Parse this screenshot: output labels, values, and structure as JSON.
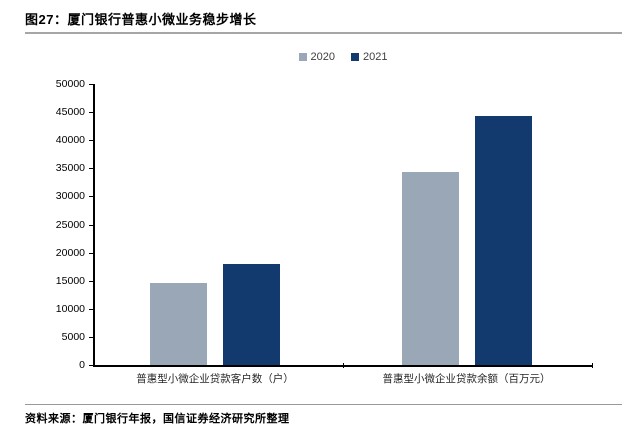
{
  "figure": {
    "title": "图27：厦门银行普惠小微业务稳步增长",
    "source": "资料来源：厦门银行年报，国信证券经济研究所整理"
  },
  "colors": {
    "series_2020": "#9AA7B6",
    "series_2021": "#123A6E",
    "axis": "#000000",
    "rule_top": "#A6A6A6",
    "rule_bottom": "#999999"
  },
  "chart_data": {
    "type": "bar",
    "title": "图27：厦门银行普惠小微业务稳步增长",
    "categories": [
      "普惠型小微企业贷款客户数（户）",
      "普惠型小微企业贷款余额（百万元）"
    ],
    "series": [
      {
        "name": "2020",
        "color": "#9AA7B6",
        "values": [
          14600,
          34300
        ]
      },
      {
        "name": "2021",
        "color": "#123A6E",
        "values": [
          17900,
          44400
        ]
      }
    ],
    "xlabel": "",
    "ylabel": "",
    "ylim": [
      0,
      50000
    ],
    "ytick_step": 5000,
    "grid": false,
    "legend_position": "top-center"
  }
}
